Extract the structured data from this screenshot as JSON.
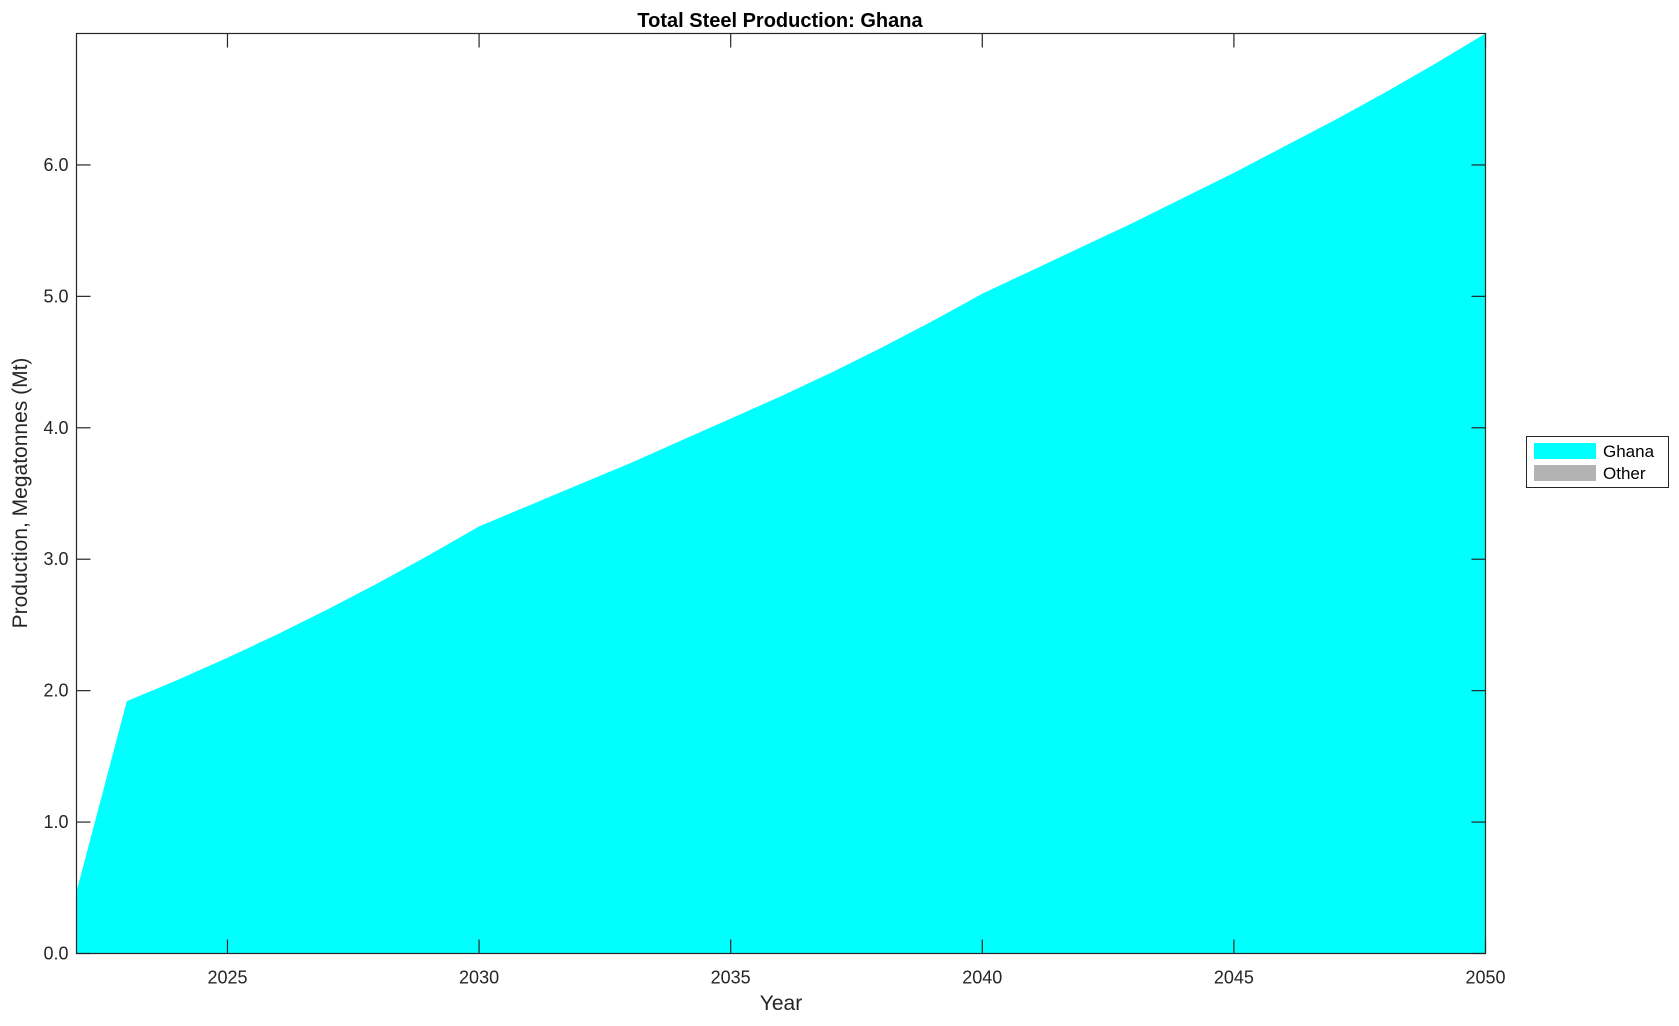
{
  "chart_data": {
    "type": "area",
    "stacked": true,
    "title": "Total Steel Production: Ghana",
    "xlabel": "Year",
    "ylabel": "Production, Megatonnes (Mt)",
    "xlim": [
      2022,
      2050
    ],
    "ylim": [
      0,
      7
    ],
    "x_ticks": [
      2025,
      2030,
      2035,
      2040,
      2045,
      2050
    ],
    "y_ticks": [
      "0.0",
      "1.0",
      "2.0",
      "3.0",
      "4.0",
      "5.0",
      "6.0"
    ],
    "grid": false,
    "legend_position": "right",
    "x": [
      2022,
      2023,
      2024,
      2025,
      2026,
      2027,
      2028,
      2029,
      2030,
      2031,
      2032,
      2033,
      2034,
      2035,
      2036,
      2037,
      2038,
      2039,
      2040,
      2041,
      2042,
      2043,
      2044,
      2045,
      2046,
      2047,
      2048,
      2049,
      2050
    ],
    "series": [
      {
        "name": "Ghana",
        "color": "#00FFFF",
        "values": [
          0.47,
          1.92,
          2.08,
          2.25,
          2.43,
          2.62,
          2.82,
          3.03,
          3.25,
          3.41,
          3.57,
          3.73,
          3.9,
          4.07,
          4.24,
          4.42,
          4.61,
          4.81,
          5.02,
          5.2,
          5.38,
          5.56,
          5.75,
          5.94,
          6.14,
          6.34,
          6.55,
          6.77,
          7.0
        ]
      },
      {
        "name": "Other",
        "color": "#B3B3B3",
        "values": [
          0,
          0,
          0,
          0,
          0,
          0,
          0,
          0,
          0,
          0,
          0,
          0,
          0,
          0,
          0,
          0,
          0,
          0,
          0,
          0,
          0,
          0,
          0,
          0,
          0,
          0,
          0,
          0,
          0
        ]
      }
    ]
  }
}
